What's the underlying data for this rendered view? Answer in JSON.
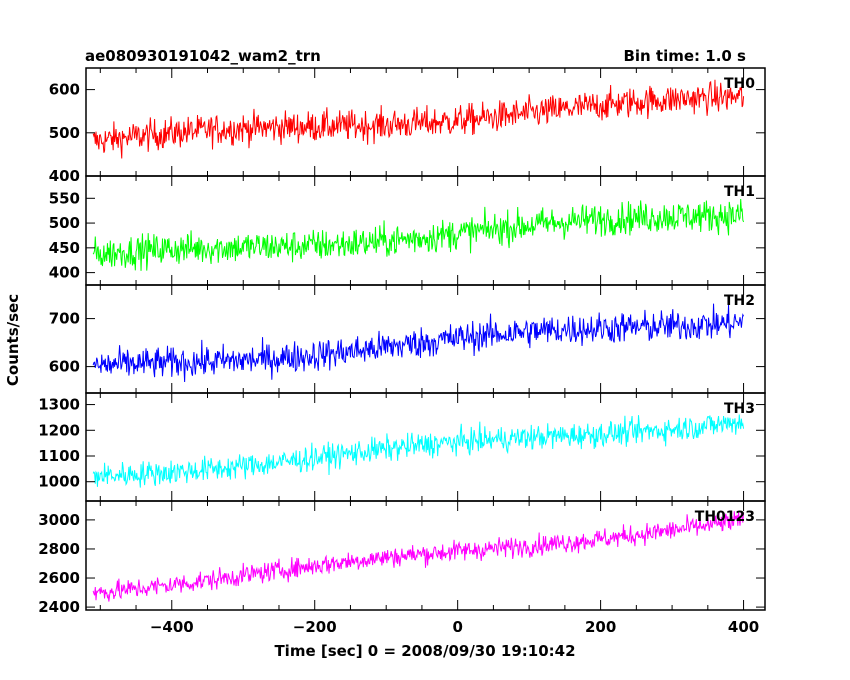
{
  "header": {
    "title": "ae080930191042_wam2_trn",
    "bin_time": "Bin time: 1.0 s"
  },
  "axes": {
    "ylabel": "Counts/sec",
    "xlabel": "Time [sec] 0 = 2008/09/30 19:10:42"
  },
  "chart_data": {
    "type": "line",
    "x_range": [
      -510,
      400
    ],
    "xlim": [
      -520,
      430
    ],
    "x_ticks": [
      -400,
      -200,
      0,
      200,
      400
    ],
    "x_tick_labels": [
      "−400",
      "−200",
      "0",
      "200",
      "400"
    ],
    "panels": [
      {
        "label": "TH0",
        "color": "#ff0000",
        "ylim": [
          400,
          650
        ],
        "y_ticks": [
          400,
          500,
          600
        ],
        "y_tick_labels": [
          "400",
          "500",
          "600"
        ],
        "trend_start": 480,
        "trend_end": 580,
        "noise": 33
      },
      {
        "label": "TH1",
        "color": "#00ff00",
        "ylim": [
          375,
          595
        ],
        "y_ticks": [
          400,
          450,
          500,
          550
        ],
        "y_tick_labels": [
          "400",
          "450",
          "500",
          "550"
        ],
        "trend_start": 430,
        "trend_end": 520,
        "noise": 30
      },
      {
        "label": "TH2",
        "color": "#0000ff",
        "ylim": [
          545,
          770
        ],
        "y_ticks": [
          600,
          700
        ],
        "y_tick_labels": [
          "600",
          "700"
        ],
        "trend_start": 595,
        "trend_end": 700,
        "noise": 30
      },
      {
        "label": "TH3",
        "color": "#00ffff",
        "ylim": [
          925,
          1345
        ],
        "y_ticks": [
          1000,
          1100,
          1200,
          1300
        ],
        "y_tick_labels": [
          "1000",
          "1100",
          "1200",
          "1300"
        ],
        "trend_start": 1020,
        "trend_end": 1240,
        "noise": 45
      },
      {
        "label": "TH0123",
        "color": "#ff00ff",
        "ylim": [
          2380,
          3130
        ],
        "y_ticks": [
          2400,
          2600,
          2800,
          3000
        ],
        "y_tick_labels": [
          "2400",
          "2600",
          "2800",
          "3000"
        ],
        "trend_start": 2510,
        "trend_end": 2990,
        "noise": 65
      }
    ]
  }
}
